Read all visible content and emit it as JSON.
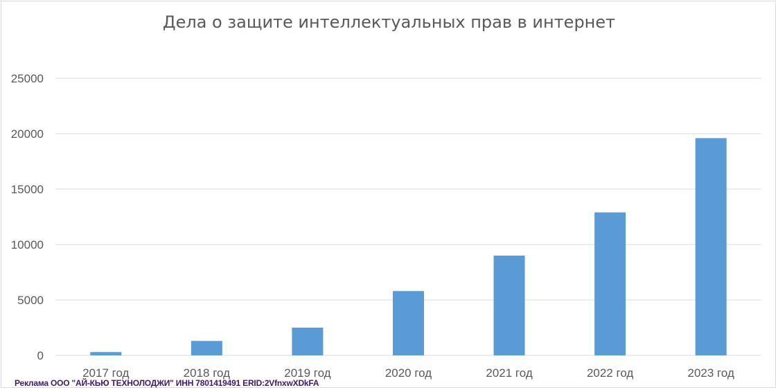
{
  "chart_data": {
    "type": "bar",
    "title": "Дела о защите интеллектуальных прав в интернет",
    "categories": [
      "2017 год",
      "2018 год",
      "2019 год",
      "2020 год",
      "2021 год",
      "2022 год",
      "2023 год"
    ],
    "values": [
      300,
      1300,
      2500,
      5800,
      9000,
      12900,
      19600
    ],
    "ylim": [
      0,
      25000
    ],
    "yticks": [
      0,
      5000,
      10000,
      15000,
      20000,
      25000
    ],
    "grid": true,
    "bar_color": "#5b9bd5"
  },
  "ad_text": "Реклама ООО \"АЙ-КЬЮ ТЕХНОЛОДЖИ\" ИНН 7801419491 ERID:2VfnxwXDkFA"
}
